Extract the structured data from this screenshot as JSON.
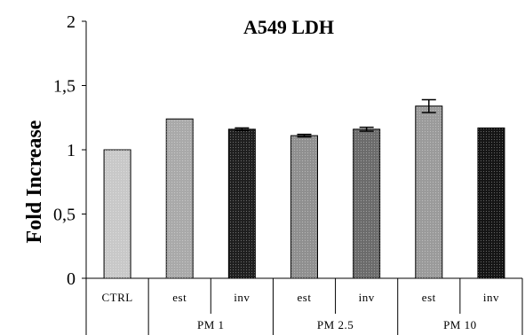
{
  "chart_data": {
    "type": "bar",
    "title": "A549 LDH",
    "xlabel": "",
    "ylabel": "Fold Increase",
    "ylim": [
      0,
      2
    ],
    "yticks": [
      "0",
      "0,5",
      "1",
      "1,5",
      "2"
    ],
    "grid": false,
    "legend": "none",
    "categories": [
      "CTRL",
      "est",
      "inv",
      "est",
      "inv",
      "est",
      "inv"
    ],
    "groups": [
      {
        "label": "PM 1",
        "categories": [
          "est",
          "inv"
        ]
      },
      {
        "label": "PM 2.5",
        "categories": [
          "est",
          "inv"
        ]
      },
      {
        "label": "PM 10",
        "categories": [
          "est",
          "inv"
        ]
      }
    ],
    "values": [
      1.0,
      1.24,
      1.16,
      1.11,
      1.16,
      1.34,
      1.17
    ],
    "errors": [
      0,
      0,
      0.01,
      0.01,
      0.015,
      0.05,
      0
    ],
    "bar_colors": [
      "#c8c8c8",
      "#a9a9a9",
      "#1e1e1e",
      "#8f8f8f",
      "#6b6b6b",
      "#9a9a9a",
      "#141414"
    ]
  }
}
